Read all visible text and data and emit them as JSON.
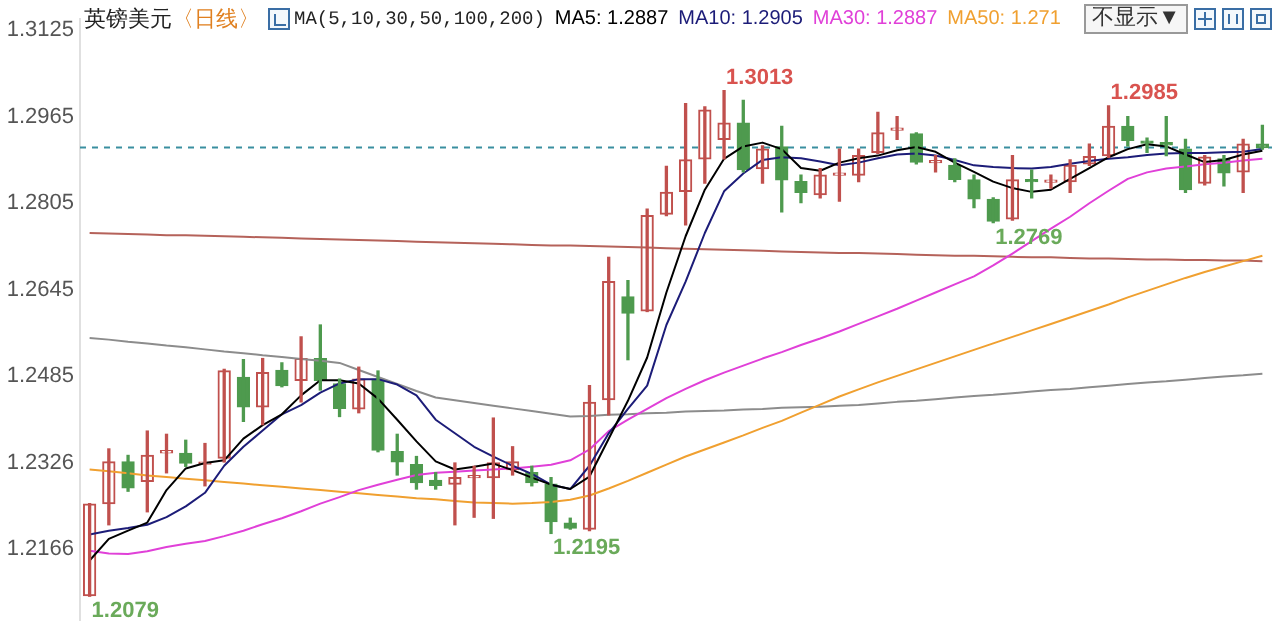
{
  "chart_data": {
    "type": "candlestick",
    "title": "英镑美元",
    "subtitle": "〈日线〉",
    "categories": [
      null,
      null,
      null,
      null,
      null,
      null,
      null,
      null,
      null,
      null,
      null,
      null,
      null,
      null,
      null,
      null,
      null,
      null,
      null,
      null,
      null,
      null,
      null,
      null,
      null,
      null,
      null,
      null,
      null,
      null,
      null,
      null,
      null,
      null,
      null,
      null,
      null,
      null,
      null,
      null,
      null,
      null,
      null,
      null,
      null,
      null,
      null,
      null,
      null,
      null,
      null,
      null,
      null,
      null,
      null,
      null,
      null,
      null,
      null,
      null,
      null,
      null
    ],
    "ohlc": [
      [
        1.208,
        1.225,
        1.2079,
        1.2249
      ],
      [
        1.225,
        1.2351,
        1.2211,
        1.2327
      ],
      [
        1.2327,
        1.2339,
        1.2273,
        1.2279
      ],
      [
        1.2291,
        1.2384,
        1.2235,
        1.2339
      ],
      [
        1.2344,
        1.2378,
        1.2307,
        1.2346
      ],
      [
        1.2343,
        1.2367,
        1.2319,
        1.2325
      ],
      [
        1.2323,
        1.2361,
        1.2283,
        1.2326
      ],
      [
        1.2334,
        1.2498,
        1.2327,
        1.2495
      ],
      [
        1.2483,
        1.2516,
        1.2402,
        1.2429
      ],
      [
        1.2429,
        1.2518,
        1.2396,
        1.2492
      ],
      [
        1.2496,
        1.251,
        1.2466,
        1.2468
      ],
      [
        1.2478,
        1.2558,
        1.2438,
        1.2518
      ],
      [
        1.2518,
        1.258,
        1.246,
        1.2478
      ],
      [
        1.2471,
        1.248,
        1.2411,
        1.2426
      ],
      [
        1.2425,
        1.2502,
        1.2418,
        1.248
      ],
      [
        1.248,
        1.2495,
        1.2346,
        1.2349
      ],
      [
        1.2346,
        1.2378,
        1.2303,
        1.2327
      ],
      [
        1.2322,
        1.2337,
        1.2277,
        1.2289
      ],
      [
        1.2293,
        1.2307,
        1.2277,
        1.2284
      ],
      [
        1.2286,
        1.2325,
        1.2211,
        1.2298
      ],
      [
        1.2298,
        1.2319,
        1.2225,
        1.23
      ],
      [
        1.2298,
        1.2408,
        1.2223,
        1.2325
      ],
      [
        1.2313,
        1.2355,
        1.2303,
        1.2327
      ],
      [
        1.2307,
        1.2319,
        1.2283,
        1.2289
      ],
      [
        1.2286,
        1.2298,
        1.2195,
        1.2217
      ],
      [
        1.2214,
        1.2223,
        1.2203,
        1.2205
      ],
      [
        1.2203,
        1.2468,
        1.22,
        1.2437
      ],
      [
        1.2442,
        1.2705,
        1.2414,
        1.266
      ],
      [
        1.2632,
        1.2662,
        1.2516,
        1.2602
      ],
      [
        1.2606,
        1.2794,
        1.2605,
        1.2782
      ],
      [
        1.2785,
        1.2873,
        1.2782,
        1.2825
      ],
      [
        1.2827,
        1.2989,
        1.2765,
        1.2885
      ],
      [
        1.2887,
        1.2983,
        1.2842,
        1.2977
      ],
      [
        1.2923,
        1.3013,
        1.2887,
        1.2953
      ],
      [
        1.2953,
        1.2995,
        1.2863,
        1.2867
      ],
      [
        1.2869,
        1.2911,
        1.2842,
        1.2905
      ],
      [
        1.2909,
        1.2947,
        1.2789,
        1.2848
      ],
      [
        1.2845,
        1.2857,
        1.2806,
        1.2825
      ],
      [
        1.2821,
        1.2869,
        1.2815,
        1.2857
      ],
      [
        1.2857,
        1.2905,
        1.2809,
        1.2858
      ],
      [
        1.2857,
        1.2905,
        1.2845,
        1.2893
      ],
      [
        1.2899,
        1.2973,
        1.2897,
        1.2935
      ],
      [
        1.294,
        1.2965,
        1.2923,
        1.2942
      ],
      [
        1.2933,
        1.2935,
        1.2878,
        1.2881
      ],
      [
        1.288,
        1.2893,
        1.2863,
        1.2882
      ],
      [
        1.2875,
        1.2887,
        1.2845,
        1.2849
      ],
      [
        1.2848,
        1.2857,
        1.2797,
        1.2813
      ],
      [
        1.2812,
        1.2815,
        1.2769,
        1.2772
      ],
      [
        1.2776,
        1.2893,
        1.2774,
        1.2848
      ],
      [
        1.2847,
        1.2866,
        1.2815,
        1.2845
      ],
      [
        1.2844,
        1.2857,
        1.2833,
        1.2846
      ],
      [
        1.2845,
        1.2885,
        1.2825,
        1.2875
      ],
      [
        1.2878,
        1.2914,
        1.2875,
        1.2891
      ],
      [
        1.2893,
        1.2985,
        1.289,
        1.2947
      ],
      [
        1.2947,
        1.2965,
        1.2911,
        1.2921
      ],
      [
        1.2918,
        1.2925,
        1.2899,
        1.2916
      ],
      [
        1.2914,
        1.2965,
        1.2893,
        1.2913
      ],
      [
        1.2905,
        1.2923,
        1.2825,
        1.283
      ],
      [
        1.2842,
        1.2893,
        1.2839,
        1.289
      ],
      [
        1.2887,
        1.2893,
        1.2837,
        1.2861
      ],
      [
        1.2863,
        1.2923,
        1.2825,
        1.2914
      ],
      [
        1.2914,
        1.2949,
        1.2905,
        1.2908
      ]
    ],
    "series": [
      {
        "type": "line",
        "name": "MA5: 1.2887",
        "color": "#000000",
        "values": [
          1.2145,
          1.2185,
          1.22,
          1.2215,
          1.2275,
          1.2315,
          1.2325,
          1.233,
          1.237,
          1.2395,
          1.2415,
          1.245,
          1.2478,
          1.2478,
          1.2472,
          1.2444,
          1.2405,
          1.2365,
          1.2328,
          1.2313,
          1.2318,
          1.2324,
          1.2312,
          1.2298,
          1.2285,
          1.2277,
          1.23,
          1.237,
          1.244,
          1.252,
          1.264,
          1.2744,
          1.283,
          1.2887,
          1.291,
          1.2917,
          1.2905,
          1.287,
          1.2865,
          1.288,
          1.2888,
          1.2893,
          1.2903,
          1.2909,
          1.29,
          1.288,
          1.2863,
          1.2845,
          1.2833,
          1.2826,
          1.283,
          1.285,
          1.287,
          1.289,
          1.2905,
          1.2914,
          1.291,
          1.2895,
          1.2881,
          1.2885,
          1.2895,
          1.2902
        ]
      },
      {
        "type": "line",
        "name": "MA10: 1.2905",
        "color": "#1c1c78",
        "values": [
          1.2193,
          1.22,
          1.2205,
          1.2211,
          1.2225,
          1.2245,
          1.227,
          1.232,
          1.2355,
          1.2385,
          1.2415,
          1.2432,
          1.2455,
          1.2472,
          1.248,
          1.248,
          1.247,
          1.245,
          1.2405,
          1.238,
          1.2355,
          1.2337,
          1.232,
          1.2305,
          1.2285,
          1.2277,
          1.232,
          1.238,
          1.2425,
          1.2468,
          1.258,
          1.266,
          1.275,
          1.2827,
          1.286,
          1.2885,
          1.289,
          1.2888,
          1.2882,
          1.2875,
          1.288,
          1.2888,
          1.2895,
          1.2897,
          1.2893,
          1.2885,
          1.2875,
          1.2872,
          1.287,
          1.2869,
          1.2872,
          1.2878,
          1.2883,
          1.2887,
          1.289,
          1.2894,
          1.2897,
          1.2898,
          1.2898,
          1.2899,
          1.29,
          1.2905
        ]
      },
      {
        "type": "line",
        "name": "MA30: 1.2887",
        "color": "#e040d8",
        "values": [
          1.2163,
          1.2158,
          1.2157,
          1.2162,
          1.217,
          1.2176,
          1.2181,
          1.219,
          1.22,
          1.2212,
          1.2223,
          1.2236,
          1.225,
          1.2262,
          1.2275,
          1.2285,
          1.2294,
          1.2303,
          1.2307,
          1.2309,
          1.2311,
          1.2313,
          1.2315,
          1.2318,
          1.2322,
          1.233,
          1.235,
          1.2384,
          1.2405,
          1.2425,
          1.2445,
          1.2462,
          1.2478,
          1.2492,
          1.2505,
          1.2518,
          1.253,
          1.2543,
          1.2555,
          1.2568,
          1.2582,
          1.2596,
          1.261,
          1.2625,
          1.264,
          1.2655,
          1.267,
          1.269,
          1.2712,
          1.2735,
          1.2758,
          1.278,
          1.2805,
          1.2828,
          1.285,
          1.2862,
          1.2869,
          1.2873,
          1.2877,
          1.288,
          1.2884,
          1.2887
        ]
      },
      {
        "type": "line",
        "name": "MA50: 1.271",
        "color": "#f0a030",
        "values": [
          1.2313,
          1.231,
          1.2306,
          1.2302,
          1.2299,
          1.2296,
          1.2293,
          1.229,
          1.2287,
          1.2284,
          1.2281,
          1.2278,
          1.2275,
          1.2272,
          1.2269,
          1.2266,
          1.2263,
          1.226,
          1.2258,
          1.2255,
          1.2252,
          1.2251,
          1.225,
          1.2251,
          1.2253,
          1.2257,
          1.2265,
          1.2278,
          1.2292,
          1.2307,
          1.2322,
          1.2337,
          1.235,
          1.2363,
          1.2376,
          1.239,
          1.2403,
          1.2418,
          1.2433,
          1.2448,
          1.2461,
          1.2474,
          1.2486,
          1.2498,
          1.251,
          1.2522,
          1.2534,
          1.2546,
          1.2558,
          1.257,
          1.2582,
          1.2594,
          1.2606,
          1.2618,
          1.2631,
          1.2643,
          1.2655,
          1.2667,
          1.2678,
          1.2688,
          1.2698,
          1.2708
        ]
      },
      {
        "type": "line",
        "color": "#8c8c8c",
        "values": [
          1.2556,
          1.2553,
          1.2549,
          1.2546,
          1.2542,
          1.2539,
          1.2535,
          1.2531,
          1.2528,
          1.2524,
          1.2521,
          1.2517,
          1.2514,
          1.251,
          1.2497,
          1.2484,
          1.2471,
          1.2458,
          1.2446,
          1.2441,
          1.2436,
          1.2431,
          1.2426,
          1.2421,
          1.2416,
          1.2411,
          1.2412,
          1.2414,
          1.2415,
          1.2417,
          1.2418,
          1.242,
          1.2421,
          1.2422,
          1.2424,
          1.2425,
          1.2427,
          1.2428,
          1.2429,
          1.2431,
          1.2432,
          1.2435,
          1.2438,
          1.244,
          1.2443,
          1.2446,
          1.2449,
          1.2451,
          1.2454,
          1.2457,
          1.246,
          1.2462,
          1.2465,
          1.2468,
          1.2471,
          1.2474,
          1.2476,
          1.2479,
          1.2482,
          1.2485,
          1.2487,
          1.249
        ]
      },
      {
        "type": "line",
        "color": "#b5625a",
        "values": [
          1.275,
          1.2749,
          1.2748,
          1.2747,
          1.2746,
          1.2746,
          1.2745,
          1.2744,
          1.2743,
          1.2742,
          1.2741,
          1.274,
          1.2739,
          1.2738,
          1.2737,
          1.2736,
          1.2735,
          1.2734,
          1.2733,
          1.2732,
          1.2731,
          1.273,
          1.2729,
          1.2728,
          1.2727,
          1.2727,
          1.2726,
          1.2725,
          1.2724,
          1.2723,
          1.2722,
          1.2721,
          1.272,
          1.2719,
          1.2718,
          1.2717,
          1.2716,
          1.2715,
          1.2714,
          1.2713,
          1.2713,
          1.2712,
          1.2711,
          1.271,
          1.2709,
          1.2708,
          1.2708,
          1.2707,
          1.2706,
          1.2705,
          1.2705,
          1.2704,
          1.2703,
          1.2703,
          1.2702,
          1.2701,
          1.2701,
          1.27,
          1.27,
          1.2699,
          1.2699,
          1.2698
        ]
      }
    ],
    "ylim": [
      1.2035,
      1.3145
    ],
    "yticks": [
      1.2166,
      1.2326,
      1.2485,
      1.2645,
      1.2805,
      1.2965,
      1.3125
    ],
    "ref_lines": [
      {
        "axis": "y",
        "value": 1.2908,
        "color": "#3a8fa0",
        "line_style": "dashed"
      }
    ],
    "annotations": [
      "MA(5,10,30,50,100,200)",
      "不显示▼",
      "1.3013",
      "1.2985",
      "1.2079",
      "1.2195",
      "1.2769"
    ],
    "legend": "top right",
    "tick_labels": "y",
    "grid": false
  }
}
